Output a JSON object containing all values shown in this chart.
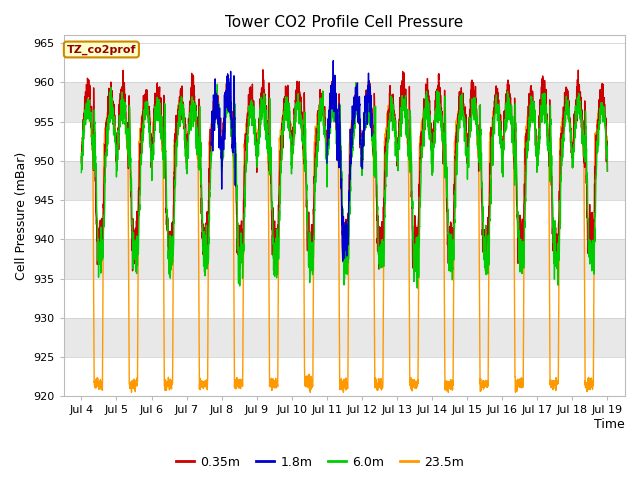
{
  "title": "Tower CO2 Profile Cell Pressure",
  "ylabel": "Cell Pressure (mBar)",
  "xlabel": "Time",
  "ylim": [
    920,
    966
  ],
  "xlim": [
    3.5,
    19.5
  ],
  "xticks": [
    4,
    5,
    6,
    7,
    8,
    9,
    10,
    11,
    12,
    13,
    14,
    15,
    16,
    17,
    18,
    19
  ],
  "xticklabels": [
    "Jul 4",
    "Jul 5",
    "Jul 6",
    "Jul 7",
    "Jul 8",
    "Jul 9",
    "Jul 10",
    "Jul 11",
    "Jul 12",
    "Jul 13",
    "Jul 14",
    "Jul 15",
    "Jul 16",
    "Jul 17",
    "Jul 18",
    "Jul 19"
  ],
  "yticks": [
    920,
    925,
    930,
    935,
    940,
    945,
    950,
    955,
    960,
    965
  ],
  "legend_label": "TZ_co2prof",
  "legend_bbox_color": "#ffffcc",
  "legend_bbox_edgecolor": "#cc8800",
  "series": [
    {
      "label": "0.35m",
      "color": "#cc0000",
      "lw": 1.0
    },
    {
      "label": "1.8m",
      "color": "#0000cc",
      "lw": 1.0
    },
    {
      "label": "6.0m",
      "color": "#00cc00",
      "lw": 1.0
    },
    {
      "label": "23.5m",
      "color": "#ff9900",
      "lw": 1.0
    }
  ],
  "fig_bg": "#ffffff",
  "plot_bg": "#ffffff",
  "band_color": "#e8e8e8",
  "grid_color": "#cccccc",
  "title_fontsize": 11,
  "axis_label_fontsize": 9,
  "tick_fontsize": 8
}
